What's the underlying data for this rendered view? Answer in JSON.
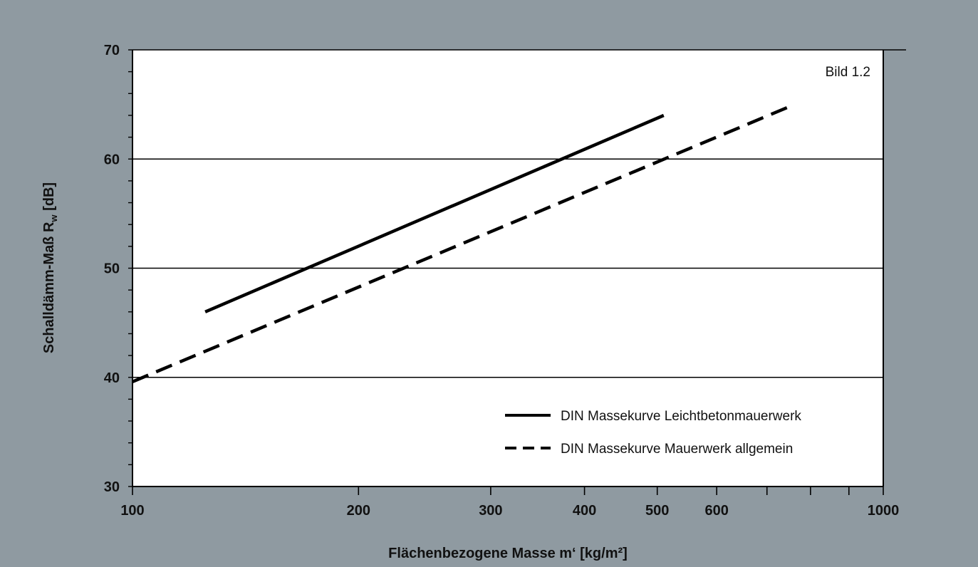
{
  "chart_data": {
    "type": "line",
    "figure_label": "Bild 1.2",
    "xlabel": "Flächenbezogene Masse m‘ [kg/m²]",
    "ylabel_main": "Schalldämm-Maß R",
    "ylabel_sub": "w",
    "ylabel_unit": " [dB]",
    "x_scale": "log",
    "xlim": [
      100,
      1000
    ],
    "ylim": [
      30,
      70
    ],
    "x_tick_labels": [
      "100",
      "200",
      "300",
      "400",
      "500",
      "600",
      "1000"
    ],
    "x_minor_ticks": [
      700,
      800,
      900
    ],
    "y_tick_labels": [
      "30",
      "40",
      "50",
      "60",
      "70"
    ],
    "y_minor_step": 2,
    "grid": "horizontal",
    "legend_position": "bottom-right",
    "series": [
      {
        "name": "DIN Massekurve Leichtbetonmauerwerk",
        "style": "solid",
        "x": [
          125,
          510
        ],
        "y": [
          46.0,
          64.0
        ]
      },
      {
        "name": "DIN Massekurve Mauerwerk allgemein",
        "style": "dashed",
        "x": [
          100,
          750
        ],
        "y": [
          39.6,
          64.8
        ]
      }
    ]
  }
}
